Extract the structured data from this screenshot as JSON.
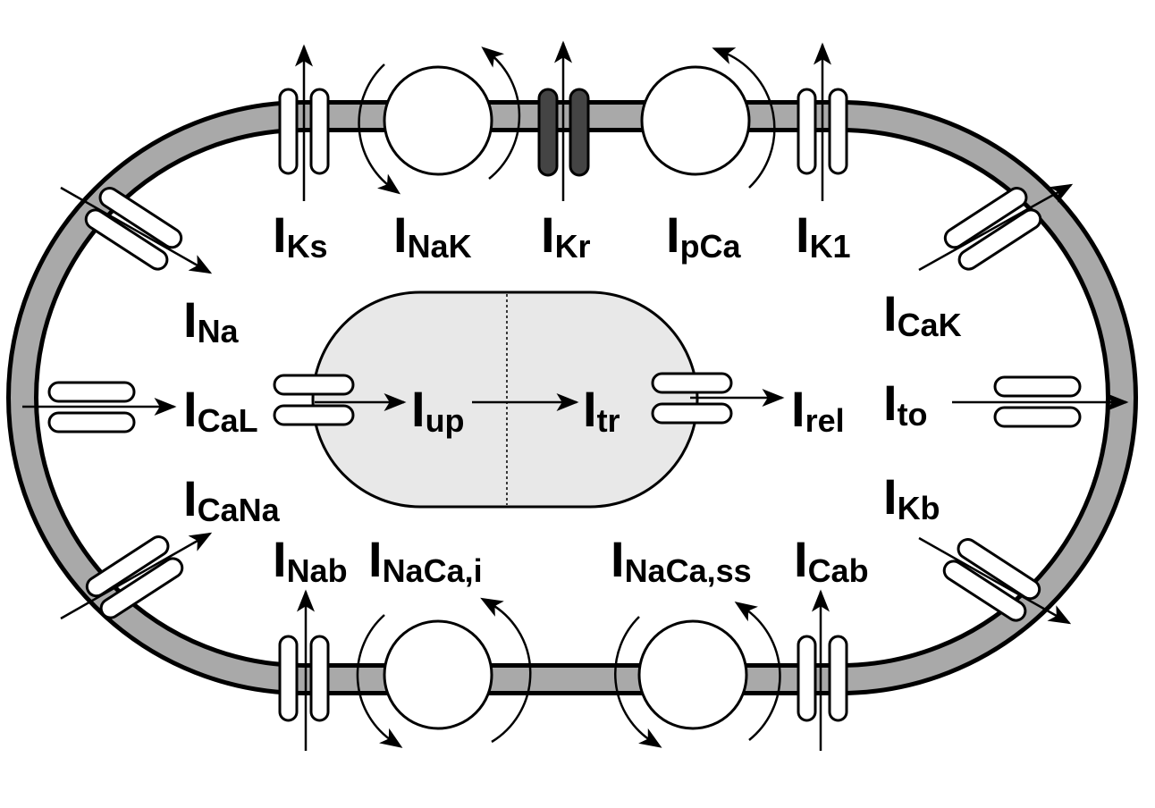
{
  "currents": {
    "iks": {
      "main": "I",
      "sub": "Ks"
    },
    "inak": {
      "main": "I",
      "sub": "NaK"
    },
    "ikr": {
      "main": "I",
      "sub": "Kr"
    },
    "ipca": {
      "main": "I",
      "sub": "pCa"
    },
    "ik1": {
      "main": "I",
      "sub": "K1"
    },
    "ina": {
      "main": "I",
      "sub": "Na"
    },
    "ical": {
      "main": "I",
      "sub": "CaL"
    },
    "icana": {
      "main": "I",
      "sub": "CaNa"
    },
    "icak": {
      "main": "I",
      "sub": "CaK"
    },
    "ito": {
      "main": "I",
      "sub": "to"
    },
    "ikb": {
      "main": "I",
      "sub": "Kb"
    },
    "iup": {
      "main": "I",
      "sub": "up"
    },
    "itr": {
      "main": "I",
      "sub": "tr"
    },
    "irel": {
      "main": "I",
      "sub": "rel"
    },
    "inab": {
      "main": "I",
      "sub": "Nab"
    },
    "inaca_i": {
      "main": "I",
      "sub": "NaCa,i"
    },
    "inaca_ss": {
      "main": "I",
      "sub": "NaCa,ss"
    },
    "icab": {
      "main": "I",
      "sub": "Cab"
    }
  },
  "colors": {
    "membrane_fill": "#a9a9a9",
    "dark_channel": "#444444",
    "sr_fill": "#e8e8e8",
    "stroke": "#000000"
  }
}
